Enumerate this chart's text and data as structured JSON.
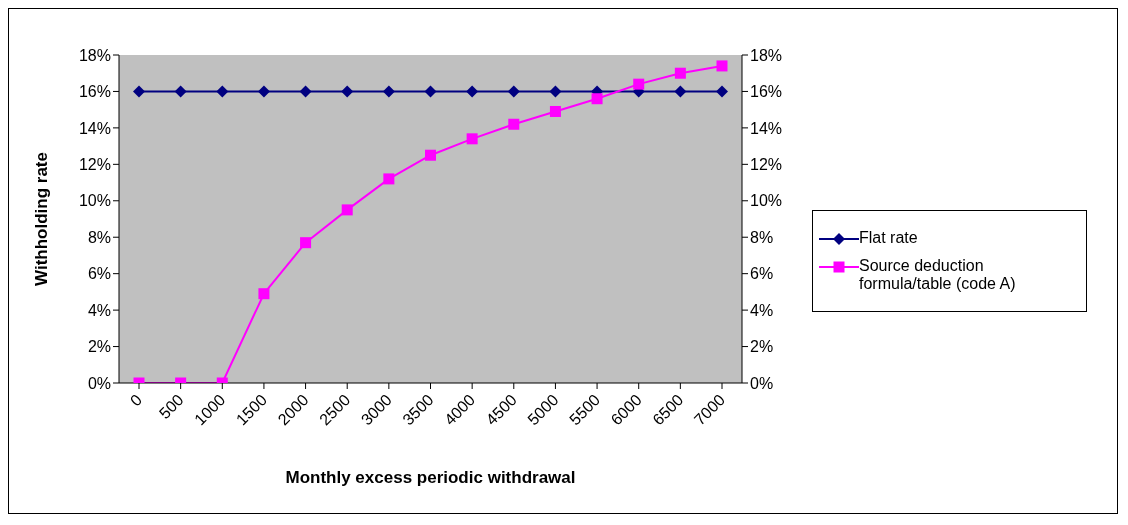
{
  "chart_data": {
    "type": "line",
    "xlabel": "Monthly excess periodic withdrawal",
    "ylabel": "Withholding rate",
    "categories": [
      "0",
      "500",
      "1000",
      "1500",
      "2000",
      "2500",
      "3000",
      "3500",
      "4000",
      "4500",
      "5000",
      "5500",
      "6000",
      "6500",
      "7000"
    ],
    "series": [
      {
        "name": "Flat rate",
        "color": "#000080",
        "marker": "diamond",
        "values": [
          16,
          16,
          16,
          16,
          16,
          16,
          16,
          16,
          16,
          16,
          16,
          16,
          16,
          16,
          16
        ]
      },
      {
        "name": "Source deduction formula/table (code A)",
        "color": "#ff00ff",
        "marker": "square",
        "values": [
          0,
          0,
          0,
          4.9,
          7.7,
          9.5,
          11.2,
          12.5,
          13.4,
          14.2,
          14.9,
          15.6,
          16.4,
          17.0,
          17.4
        ]
      }
    ],
    "ylim": [
      0,
      18
    ],
    "yticks": [
      {
        "value": 0,
        "label": "0%"
      },
      {
        "value": 2,
        "label": "2%"
      },
      {
        "value": 4,
        "label": "4%"
      },
      {
        "value": 6,
        "label": "6%"
      },
      {
        "value": 8,
        "label": "8%"
      },
      {
        "value": 10,
        "label": "10%"
      },
      {
        "value": 12,
        "label": "12%"
      },
      {
        "value": 14,
        "label": "14%"
      },
      {
        "value": 16,
        "label": "16%"
      },
      {
        "value": 18,
        "label": "18%"
      }
    ],
    "y2lim": [
      0,
      18
    ],
    "y2ticks": [
      {
        "value": 0,
        "label": "0%"
      },
      {
        "value": 2,
        "label": "2%"
      },
      {
        "value": 4,
        "label": "4%"
      },
      {
        "value": 6,
        "label": "6%"
      },
      {
        "value": 8,
        "label": "8%"
      },
      {
        "value": 10,
        "label": "10%"
      },
      {
        "value": 12,
        "label": "12%"
      },
      {
        "value": 14,
        "label": "14%"
      },
      {
        "value": 16,
        "label": "16%"
      },
      {
        "value": 18,
        "label": "18%"
      }
    ],
    "grid": false,
    "legend": "right",
    "line_style": "solid"
  }
}
